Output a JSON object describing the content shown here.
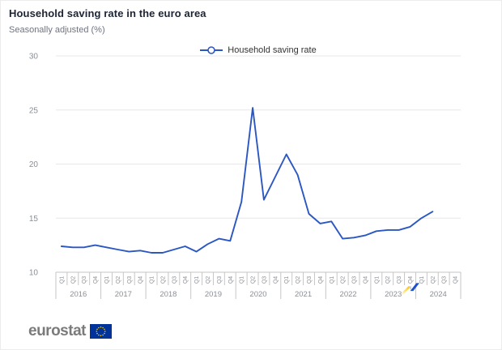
{
  "header": {
    "title": "Household saving rate in the euro area",
    "subtitle": "Seasonally adjusted (%)"
  },
  "legend": {
    "label": "Household saving rate"
  },
  "chart_data": {
    "type": "line",
    "title": "Household saving rate in the euro area",
    "subtitle": "Seasonally adjusted (%)",
    "series": [
      {
        "name": "Household saving rate",
        "values": [
          12.4,
          12.3,
          12.3,
          12.5,
          12.3,
          12.1,
          11.9,
          12.0,
          11.8,
          11.8,
          12.1,
          12.4,
          11.9,
          12.6,
          13.1,
          12.9,
          16.5,
          25.2,
          16.7,
          18.8,
          20.9,
          19.0,
          15.4,
          14.5,
          14.7,
          13.1,
          13.2,
          13.4,
          13.8,
          13.9,
          13.9,
          14.2,
          15.0,
          15.6,
          null,
          null
        ]
      }
    ],
    "categories": [
      "2016-Q1",
      "2016-Q2",
      "2016-Q3",
      "2016-Q4",
      "2017-Q1",
      "2017-Q2",
      "2017-Q3",
      "2017-Q4",
      "2018-Q1",
      "2018-Q2",
      "2018-Q3",
      "2018-Q4",
      "2019-Q1",
      "2019-Q2",
      "2019-Q3",
      "2019-Q4",
      "2020-Q1",
      "2020-Q2",
      "2020-Q3",
      "2020-Q4",
      "2021-Q1",
      "2021-Q2",
      "2021-Q3",
      "2021-Q4",
      "2022-Q1",
      "2022-Q2",
      "2022-Q3",
      "2022-Q4",
      "2023-Q1",
      "2023-Q2",
      "2023-Q3",
      "2023-Q4",
      "2024-Q1",
      "2024-Q2",
      "2024-Q3",
      "2024-Q4"
    ],
    "quarter_labels": [
      "Q1",
      "Q2",
      "Q3",
      "Q4"
    ],
    "years": [
      "2016",
      "2017",
      "2018",
      "2019",
      "2020",
      "2021",
      "2022",
      "2023",
      "2024"
    ],
    "yticks": [
      10,
      15,
      20,
      25,
      30
    ],
    "ylim": [
      10,
      30
    ],
    "xlabel": "",
    "ylabel": "",
    "grid": "horizontal",
    "legend_position": "top-center",
    "marker": "open-circle"
  },
  "footer": {
    "brand": "eurostat"
  },
  "colors": {
    "series_line": "#2b57c3",
    "title_text": "#1d2433",
    "subtitle_text": "#6f7480",
    "grid": "#e7e7e7",
    "axis": "#c6c6c6",
    "tick_label": "#8a8f96",
    "eurostat_gray": "#7b7b7b",
    "eu_flag_blue": "#003399",
    "star_yellow": "#ffcc00",
    "ribbon_yellow": "#ffc800",
    "ribbon_gray": "#c9ced8",
    "ribbon_blue": "#1e50cb"
  }
}
